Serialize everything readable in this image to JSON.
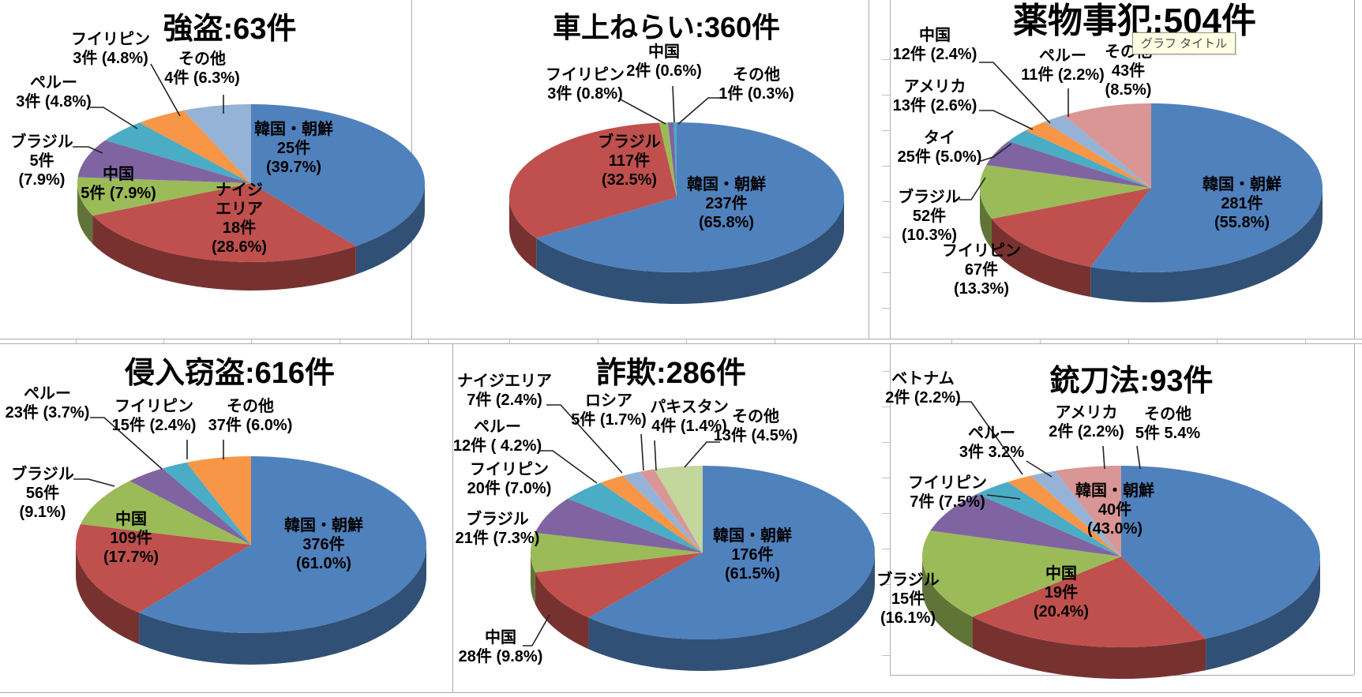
{
  "tooltip": {
    "text": "グラフ タイトル",
    "bg": "#FFFFE1"
  },
  "palette": {
    "blue": "#4F81BD",
    "red": "#C0504D",
    "green": "#9BBB59",
    "purple": "#8064A2",
    "teal": "#4BACC6",
    "orange": "#F79646",
    "light_blue": "#95B3D7",
    "pink": "#D99694",
    "light_green": "#C3D69B",
    "leader": "#222222",
    "grid": "#ADADAD"
  },
  "chart_data": [
    {
      "type": "pie",
      "style": "3d",
      "id": "robbery",
      "crime": "強盗",
      "total": 63,
      "unit": "件",
      "title": "強盗:63件",
      "slices": [
        {
          "name": "韓国・朝鮮",
          "value": 25,
          "pct": 39.7,
          "color": "#4F81BD",
          "label_lines": [
            "韓国・朝鮮",
            "25件",
            "(39.7%)"
          ]
        },
        {
          "name": "ナイジエリア",
          "value": 18,
          "pct": 28.6,
          "color": "#C0504D",
          "label_lines": [
            "ナイジ",
            "エリア",
            "18件",
            "(28.6%)"
          ]
        },
        {
          "name": "中国",
          "value": 5,
          "pct": 7.9,
          "color": "#9BBB59",
          "label_lines": [
            "中国",
            "5件 (7.9%)"
          ]
        },
        {
          "name": "ブラジル",
          "value": 5,
          "pct": 7.9,
          "color": "#8064A2",
          "label_lines": [
            "ブラジル",
            "5件",
            "(7.9%)"
          ]
        },
        {
          "name": "ペルー",
          "value": 3,
          "pct": 4.8,
          "color": "#4BACC6",
          "label_lines": [
            "ペルー",
            "3件 (4.8%)"
          ]
        },
        {
          "name": "フイリピン",
          "value": 3,
          "pct": 4.8,
          "color": "#F79646",
          "label_lines": [
            "フイリピン",
            "3件 (4.8%)"
          ]
        },
        {
          "name": "その他",
          "value": 4,
          "pct": 6.3,
          "color": "#95B3D7",
          "label_lines": [
            "その他",
            "4件 (6.3%)"
          ]
        }
      ]
    },
    {
      "type": "pie",
      "style": "3d",
      "id": "car-break-in",
      "crime": "車上ねらい",
      "total": 360,
      "unit": "件",
      "title": "車上ねらい:360件",
      "slices": [
        {
          "name": "韓国・朝鮮",
          "value": 237,
          "pct": 65.8,
          "color": "#4F81BD",
          "label_lines": [
            "韓国・朝鮮",
            "237件",
            "(65.8%)"
          ]
        },
        {
          "name": "ブラジル",
          "value": 117,
          "pct": 32.5,
          "color": "#C0504D",
          "label_lines": [
            "ブラジル",
            "117件",
            "(32.5%)"
          ]
        },
        {
          "name": "フイリピン",
          "value": 3,
          "pct": 0.8,
          "color": "#9BBB59",
          "label_lines": [
            "フイリピン",
            "3件 (0.8%)"
          ]
        },
        {
          "name": "中国",
          "value": 2,
          "pct": 0.6,
          "color": "#8064A2",
          "label_lines": [
            "中国",
            "2件 (0.6%)"
          ]
        },
        {
          "name": "その他",
          "value": 1,
          "pct": 0.3,
          "color": "#4BACC6",
          "label_lines": [
            "その他",
            "1件 (0.3%)"
          ]
        }
      ]
    },
    {
      "type": "pie",
      "style": "3d",
      "id": "drug-offenses",
      "crime": "薬物事犯",
      "total": 504,
      "unit": "件",
      "title": "薬物事犯:504件",
      "slices": [
        {
          "name": "韓国・朝鮮",
          "value": 281,
          "pct": 55.8,
          "color": "#4F81BD",
          "label_lines": [
            "韓国・朝鮮",
            "281件",
            "(55.8%)"
          ]
        },
        {
          "name": "フイリピン",
          "value": 67,
          "pct": 13.3,
          "color": "#C0504D",
          "label_lines": [
            "フイリピン",
            "67件",
            "(13.3%)"
          ]
        },
        {
          "name": "ブラジル",
          "value": 52,
          "pct": 10.3,
          "color": "#9BBB59",
          "label_lines": [
            "ブラジル",
            "52件",
            "(10.3%)"
          ]
        },
        {
          "name": "タイ",
          "value": 25,
          "pct": 5.0,
          "color": "#8064A2",
          "label_lines": [
            "タイ",
            "25件 (5.0%)"
          ]
        },
        {
          "name": "アメリカ",
          "value": 13,
          "pct": 2.6,
          "color": "#4BACC6",
          "label_lines": [
            "アメリカ",
            "13件 (2.6%)"
          ]
        },
        {
          "name": "中国",
          "value": 12,
          "pct": 2.4,
          "color": "#F79646",
          "label_lines": [
            "中国",
            "12件 (2.4%)"
          ]
        },
        {
          "name": "ペルー",
          "value": 11,
          "pct": 2.2,
          "color": "#95B3D7",
          "label_lines": [
            "ペルー",
            "11件 (2.2%)"
          ]
        },
        {
          "name": "その他",
          "value": 43,
          "pct": 8.5,
          "color": "#D99694",
          "label_lines": [
            "その他",
            "43件",
            "(8.5%)"
          ]
        }
      ]
    },
    {
      "type": "pie",
      "style": "3d",
      "id": "burglary",
      "crime": "侵入窃盗",
      "total": 616,
      "unit": "件",
      "title": "侵入窃盗:616件",
      "slices": [
        {
          "name": "韓国・朝鮮",
          "value": 376,
          "pct": 61.0,
          "color": "#4F81BD",
          "label_lines": [
            "韓国・朝鮮",
            "376件",
            "(61.0%)"
          ]
        },
        {
          "name": "中国",
          "value": 109,
          "pct": 17.7,
          "color": "#C0504D",
          "label_lines": [
            "中国",
            "109件",
            "(17.7%)"
          ]
        },
        {
          "name": "ブラジル",
          "value": 56,
          "pct": 9.1,
          "color": "#9BBB59",
          "label_lines": [
            "ブラジル",
            "56件",
            "(9.1%)"
          ]
        },
        {
          "name": "ペルー",
          "value": 23,
          "pct": 3.7,
          "color": "#8064A2",
          "label_lines": [
            "ペルー",
            "23件 (3.7%)"
          ]
        },
        {
          "name": "フイリピン",
          "value": 15,
          "pct": 2.4,
          "color": "#4BACC6",
          "label_lines": [
            "フイリピン",
            "15件 (2.4%)"
          ]
        },
        {
          "name": "その他",
          "value": 37,
          "pct": 6.0,
          "color": "#F79646",
          "label_lines": [
            "その他",
            "37件 (6.0%)"
          ]
        }
      ]
    },
    {
      "type": "pie",
      "style": "3d",
      "id": "fraud",
      "crime": "詐欺",
      "total": 286,
      "unit": "件",
      "title": "詐欺:286件",
      "slices": [
        {
          "name": "韓国・朝鮮",
          "value": 176,
          "pct": 61.5,
          "color": "#4F81BD",
          "label_lines": [
            "韓国・朝鮮",
            "176件",
            "(61.5%)"
          ]
        },
        {
          "name": "中国",
          "value": 28,
          "pct": 9.8,
          "color": "#C0504D",
          "label_lines": [
            "中国",
            "28件 (9.8%)"
          ]
        },
        {
          "name": "ブラジル",
          "value": 21,
          "pct": 7.3,
          "color": "#9BBB59",
          "label_lines": [
            "ブラジル",
            "21件 (7.3%)"
          ]
        },
        {
          "name": "フイリピン",
          "value": 20,
          "pct": 7.0,
          "color": "#8064A2",
          "label_lines": [
            "フイリピン",
            "20件 (7.0%)"
          ]
        },
        {
          "name": "ペルー",
          "value": 12,
          "pct": 4.2,
          "color": "#4BACC6",
          "label_lines": [
            "ペルー",
            "12件 ( 4.2%)"
          ]
        },
        {
          "name": "ナイジエリア",
          "value": 7,
          "pct": 2.4,
          "color": "#F79646",
          "label_lines": [
            "ナイジエリア",
            "7件 (2.4%)"
          ]
        },
        {
          "name": "ロシア",
          "value": 5,
          "pct": 1.7,
          "color": "#95B3D7",
          "label_lines": [
            "ロシア",
            "5件 (1.7%)"
          ]
        },
        {
          "name": "パキスタン",
          "value": 4,
          "pct": 1.4,
          "color": "#D99694",
          "label_lines": [
            "パキスタン",
            "4件 (1.4%)"
          ]
        },
        {
          "name": "その他",
          "value": 13,
          "pct": 4.5,
          "color": "#C3D69B",
          "label_lines": [
            "その他",
            "13件 (4.5%)"
          ]
        }
      ]
    },
    {
      "type": "pie",
      "style": "3d",
      "id": "firearms-law",
      "crime": "銃刀法",
      "total": 93,
      "unit": "件",
      "title": "銃刀法:93件",
      "slices": [
        {
          "name": "韓国・朝鮮",
          "value": 40,
          "pct": 43.0,
          "color": "#4F81BD",
          "label_lines": [
            "韓国・朝鮮",
            "40件",
            "(43.0%)"
          ]
        },
        {
          "name": "中国",
          "value": 19,
          "pct": 20.4,
          "color": "#C0504D",
          "label_lines": [
            "中国",
            "19件",
            "(20.4%)"
          ]
        },
        {
          "name": "ブラジル",
          "value": 15,
          "pct": 16.1,
          "color": "#9BBB59",
          "label_lines": [
            "ブラジル",
            "15件",
            "(16.1%)"
          ]
        },
        {
          "name": "フイリピン",
          "value": 7,
          "pct": 7.5,
          "color": "#8064A2",
          "label_lines": [
            "フイリピン",
            "7件 (7.5%)"
          ]
        },
        {
          "name": "ペルー",
          "value": 3,
          "pct": 3.2,
          "color": "#4BACC6",
          "label_lines": [
            "ペルー",
            "3件 3.2%"
          ]
        },
        {
          "name": "ベトナム",
          "value": 2,
          "pct": 2.2,
          "color": "#F79646",
          "label_lines": [
            "ベトナム",
            "2件 (2.2%)"
          ]
        },
        {
          "name": "アメリカ",
          "value": 2,
          "pct": 2.2,
          "color": "#95B3D7",
          "label_lines": [
            "アメリカ",
            "2件 (2.2%)"
          ]
        },
        {
          "name": "その他",
          "value": 5,
          "pct": 5.4,
          "color": "#D99694",
          "label_lines": [
            "その他",
            "5件 5.4%"
          ]
        }
      ]
    }
  ]
}
